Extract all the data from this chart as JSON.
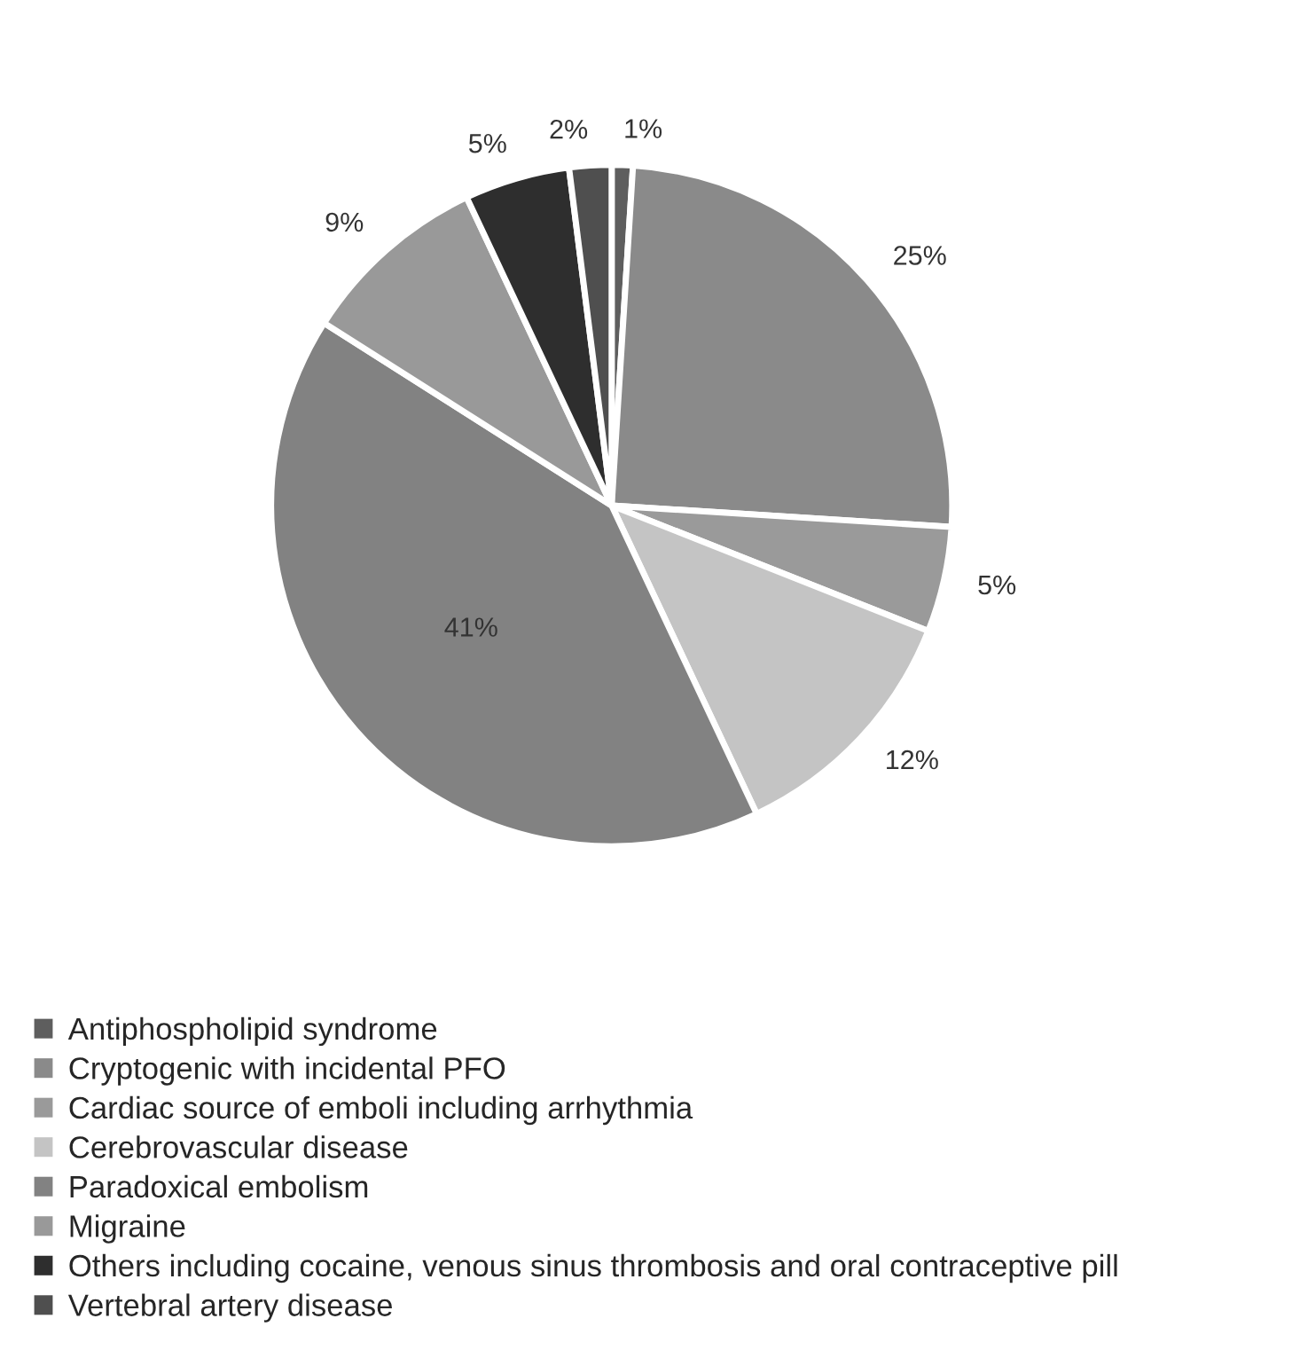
{
  "chart_data": {
    "type": "pie",
    "categories": [
      "Antiphospholipid syndrome",
      "Cryptogenic with incidental PFO",
      "Cardiac source of emboli including arrhythmia",
      "Cerebrovascular disease",
      "Paradoxical embolism",
      "Migraine",
      "Others including cocaine, venous sinus thrombosis and oral contraceptive pill",
      "Vertebral artery disease"
    ],
    "values": [
      1,
      25,
      5,
      12,
      41,
      9,
      5,
      2
    ],
    "value_labels": [
      "1%",
      "25%",
      "5%",
      "12%",
      "41%",
      "9%",
      "5%",
      "2%"
    ],
    "colors": [
      "#5e5e5e",
      "#8a8a8a",
      "#9a9a9a",
      "#c4c4c4",
      "#828282",
      "#999999",
      "#2e2e2e",
      "#4f4f4f"
    ],
    "legend": "bottom"
  }
}
